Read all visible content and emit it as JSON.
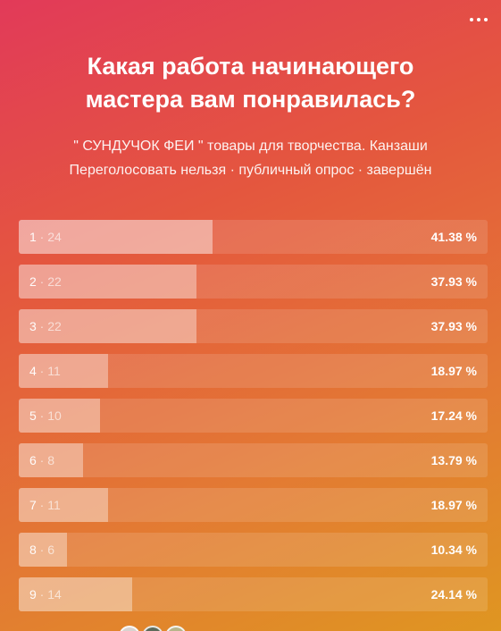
{
  "poll": {
    "title": "Какая работа начинающего мастера вам понравилась?",
    "author": "\" СУНДУЧОК ФЕИ \" товары для творчества. Канзаши",
    "meta": "Переголосовать нельзя · публичный опрос · завершён",
    "options": [
      {
        "num": "1",
        "votes": "24",
        "percent": "41.38 %",
        "share": 41.38
      },
      {
        "num": "2",
        "votes": "22",
        "percent": "37.93 %",
        "share": 37.93
      },
      {
        "num": "3",
        "votes": "22",
        "percent": "37.93 %",
        "share": 37.93
      },
      {
        "num": "4",
        "votes": "11",
        "percent": "18.97 %",
        "share": 18.97
      },
      {
        "num": "5",
        "votes": "10",
        "percent": "17.24 %",
        "share": 17.24
      },
      {
        "num": "6",
        "votes": "8",
        "percent": "13.79 %",
        "share": 13.79
      },
      {
        "num": "7",
        "votes": "11",
        "percent": "18.97 %",
        "share": 18.97
      },
      {
        "num": "8",
        "votes": "6",
        "percent": "10.34 %",
        "share": 10.34
      },
      {
        "num": "9",
        "votes": "14",
        "percent": "24.14 %",
        "share": 24.14
      }
    ]
  },
  "icons": {
    "menu": "more-horizontal-icon"
  },
  "colors": {
    "gradient_start": "#e23a59",
    "gradient_end": "#df9621",
    "text": "#ffffff"
  }
}
